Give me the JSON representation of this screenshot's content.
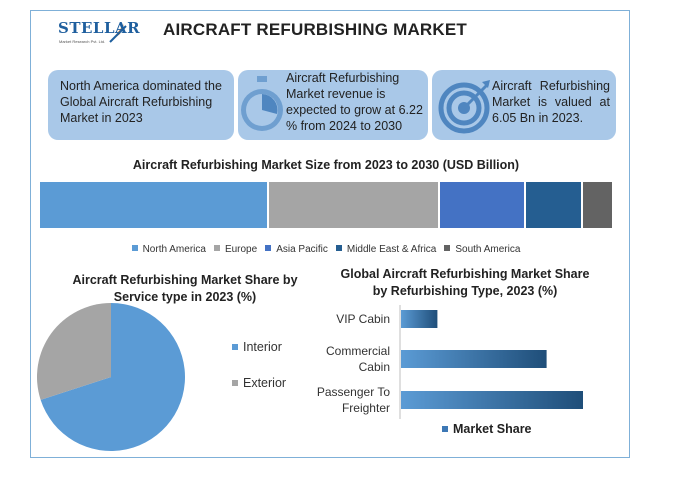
{
  "header": {
    "brand": "STELLAR",
    "brand_sub": "Market Research Pvt. Ltd.",
    "title": "AIRCRAFT REFURBISHING MARKET"
  },
  "cards": [
    {
      "text": "North America dominated the Global Aircraft Refurbishing Market in 2023",
      "icon": "none"
    },
    {
      "text": "Aircraft Refurbishing Market revenue is expected to grow at 6.22 % from 2024 to 2030",
      "icon": "stopwatch-icon"
    },
    {
      "text": "Aircraft Refurbishing Market is valued at 6.05 Bn in 2023.",
      "icon": "target-icon"
    }
  ],
  "colors": {
    "card_bg": "#a9c8e8",
    "north_america": "#5b9bd5",
    "europe": "#a5a5a5",
    "asia_pacific": "#4472c4",
    "middle_east_africa": "#255e91",
    "south_america": "#636363"
  },
  "chart_data": [
    {
      "type": "bar",
      "stacked": true,
      "orientation": "horizontal",
      "title": "Aircraft Refurbishing Market Size from 2023 to 2030 (USD Billion)",
      "series": [
        {
          "name": "North America",
          "values": [
            40
          ],
          "color": "#5b9bd5"
        },
        {
          "name": "Europe",
          "values": [
            30
          ],
          "color": "#a5a5a5"
        },
        {
          "name": "Asia Pacific",
          "values": [
            15
          ],
          "color": "#4472c4"
        },
        {
          "name": "Middle East & Africa",
          "values": [
            10
          ],
          "color": "#255e91"
        },
        {
          "name": "South America",
          "values": [
            5
          ],
          "color": "#636363"
        }
      ],
      "legend": "bottom"
    },
    {
      "type": "pie",
      "title": "Aircraft Refurbishing Market Share by Service type in 2023 (%)",
      "labels": [
        "Interior",
        "Exterior"
      ],
      "values": [
        70,
        30
      ],
      "colors": [
        "#5b9bd5",
        "#a5a5a5"
      ],
      "legend": "right"
    },
    {
      "type": "bar",
      "orientation": "horizontal",
      "title": "Global Aircraft Refurbishing Market Share by Refurbishing Type, 2023 (%)",
      "categories": [
        "VIP Cabin",
        "Commercial Cabin",
        "Passenger To Freighter"
      ],
      "series": [
        {
          "name": "Market Share",
          "values": [
            20,
            80,
            100
          ]
        }
      ],
      "xlim": [
        0,
        100
      ],
      "legend": "bottom"
    }
  ]
}
